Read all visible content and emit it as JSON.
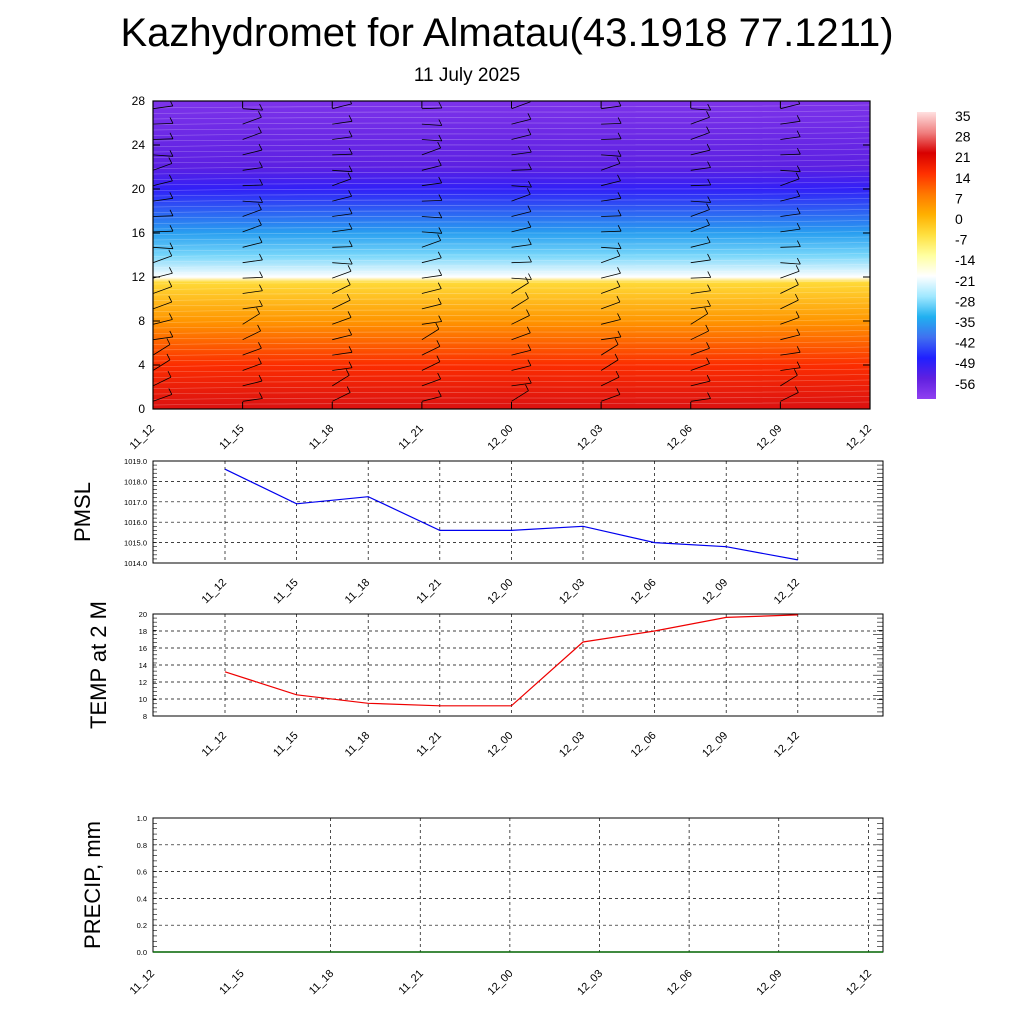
{
  "title": "Kazhydromet for Almatau(43.1918 77.1211)",
  "subtitle": "11 July 2025",
  "colors": {
    "pmsl_line": "#0000ee",
    "temp_line": "#ee0000",
    "precip_line": "#006400",
    "grid": "#000000"
  },
  "chart_data": [
    {
      "type": "heatmap",
      "name": "cross-section",
      "x_tick_labels": [
        "11_12",
        "11_15",
        "11_18",
        "11_21",
        "12_00",
        "12_03",
        "12_06",
        "12_09",
        "12_12"
      ],
      "y_tick_labels": [
        "0",
        "4",
        "8",
        "12",
        "16",
        "20",
        "24",
        "28"
      ],
      "ylim": [
        0,
        28
      ],
      "colorbar": {
        "labels": [
          "35",
          "28",
          "21",
          "14",
          "7",
          "0",
          "-7",
          "-14",
          "-21",
          "-28",
          "-35",
          "-42",
          "-49",
          "-56"
        ],
        "colors": [
          "#ffe0e0",
          "#f08080",
          "#d80000",
          "#ff3000",
          "#ff7800",
          "#ffb000",
          "#ffe040",
          "#ffffa0",
          "#ffffff",
          "#a0e8ff",
          "#20b0f0",
          "#4070f0",
          "#2020ff",
          "#6020e0",
          "#9040f0"
        ]
      },
      "temperature_profile": [
        {
          "height": 0,
          "value": 28
        },
        {
          "height": 4,
          "value": 20
        },
        {
          "height": 8,
          "value": 8
        },
        {
          "height": 11.5,
          "value": -2
        },
        {
          "height": 12,
          "value": -18
        },
        {
          "height": 14,
          "value": -28
        },
        {
          "height": 16,
          "value": -35
        },
        {
          "height": 20,
          "value": -50
        },
        {
          "height": 22,
          "value": -55
        },
        {
          "height": 28,
          "value": -60
        }
      ],
      "wind_barbs": "shown"
    },
    {
      "type": "line",
      "name": "PMSL",
      "ylabel": "PMSL",
      "categories": [
        "11_12",
        "11_15",
        "11_18",
        "11_21",
        "12_00",
        "12_03",
        "12_06",
        "12_09",
        "12_12"
      ],
      "y_tick_labels": [
        "1014.0",
        "1015.0",
        "1016.0",
        "1017.0",
        "1018.0",
        "1019.0"
      ],
      "ylim": [
        1014.0,
        1019.0
      ],
      "values": [
        1018.6,
        1016.9,
        1017.25,
        1015.6,
        1015.6,
        1015.8,
        1015.0,
        1014.8,
        1014.15
      ],
      "grid": true
    },
    {
      "type": "line",
      "name": "TEMP",
      "ylabel": "TEMP at 2 M",
      "categories": [
        "11_12",
        "11_15",
        "11_18",
        "11_21",
        "12_00",
        "12_03",
        "12_06",
        "12_09",
        "12_12"
      ],
      "y_tick_labels": [
        "8",
        "10",
        "12",
        "14",
        "16",
        "18",
        "20"
      ],
      "ylim": [
        8,
        20
      ],
      "values": [
        13.2,
        10.5,
        9.5,
        9.2,
        9.2,
        16.7,
        18.0,
        19.6,
        19.9
      ],
      "grid": true
    },
    {
      "type": "line",
      "name": "PRECIP",
      "ylabel": "PRECIP, mm",
      "x_tick_labels": [
        "11_12",
        "11_15",
        "11_18",
        "11_21",
        "12_00",
        "12_03",
        "12_06",
        "12_09",
        "12_12"
      ],
      "y_tick_labels": [
        "0.0",
        "0.2",
        "0.4",
        "0.6",
        "0.8",
        "1.0"
      ],
      "ylim": [
        0.0,
        1.0
      ],
      "values": [
        0,
        0,
        0,
        0,
        0,
        0,
        0,
        0,
        0
      ],
      "grid": true
    }
  ]
}
